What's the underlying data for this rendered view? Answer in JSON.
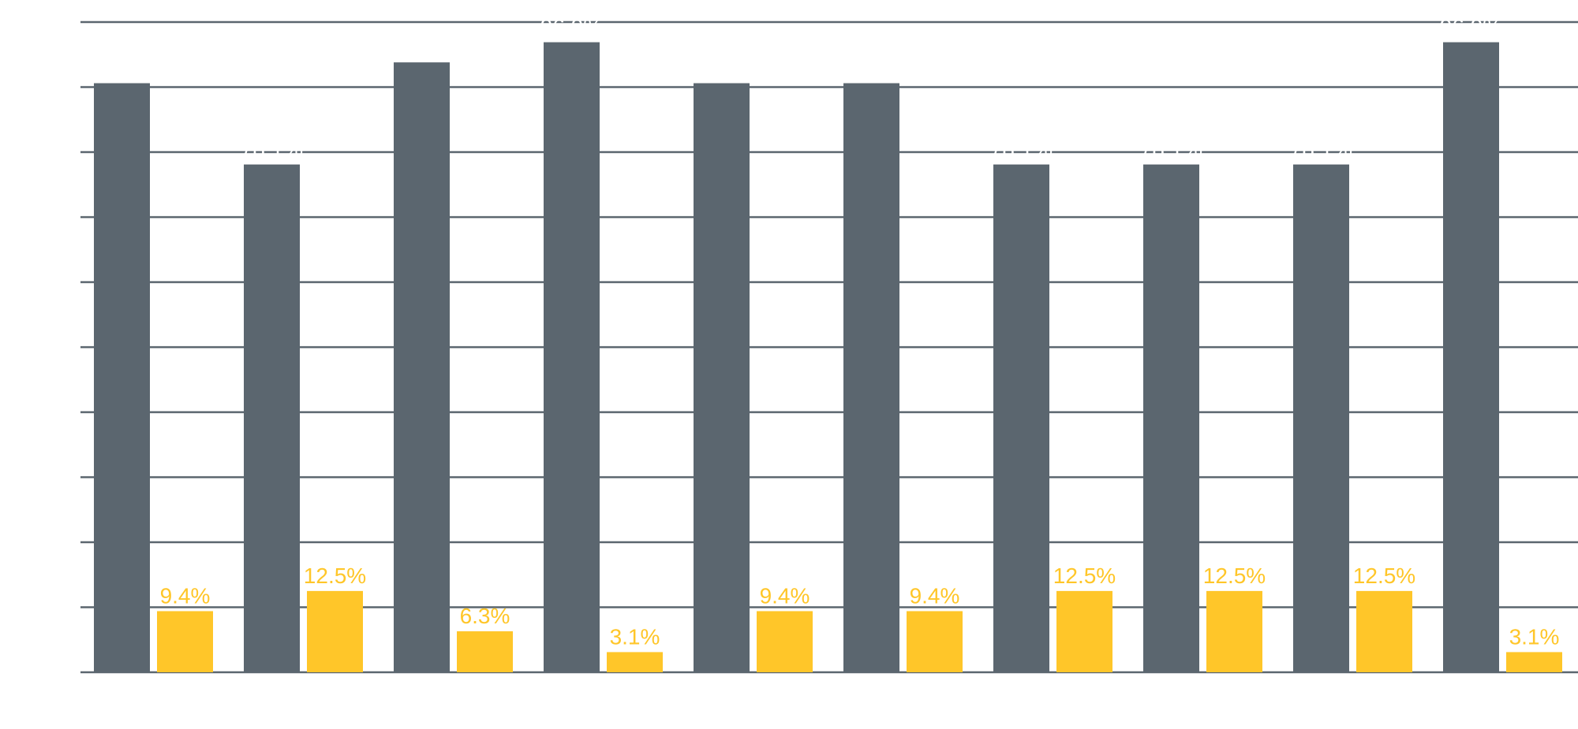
{
  "chart_data": {
    "type": "bar",
    "categories": [
      null,
      null,
      null,
      null,
      null,
      null,
      null,
      null,
      null,
      null
    ],
    "series": [
      {
        "color": "#5b666f",
        "label_color": "#ffffff",
        "values": [
          90.6,
          78.1,
          93.8,
          96.9,
          90.6,
          90.6,
          78.1,
          78.1,
          78.1,
          96.9
        ],
        "value_labels": [
          "90.6%",
          "78.1%",
          "93.8%",
          "96.9%",
          "90.6%",
          "90.6%",
          "78.1%",
          "78.1%",
          "78.1%",
          "96.9%"
        ]
      },
      {
        "color": "#ffc629",
        "label_color": "#ffc629",
        "values": [
          9.4,
          12.5,
          6.3,
          3.1,
          9.4,
          9.4,
          12.5,
          12.5,
          12.5,
          3.1
        ],
        "value_labels": [
          "9.4%",
          "12.5%",
          "6.3%",
          "3.1%",
          "9.4%",
          "9.4%",
          "12.5%",
          "12.5%",
          "12.5%",
          "3.1%"
        ]
      }
    ],
    "ylim": [
      0,
      100
    ],
    "yticks": [
      0,
      10,
      20,
      30,
      40,
      50,
      60,
      70,
      80,
      90,
      100
    ],
    "grid": true,
    "grid_color": "#5b666f"
  }
}
